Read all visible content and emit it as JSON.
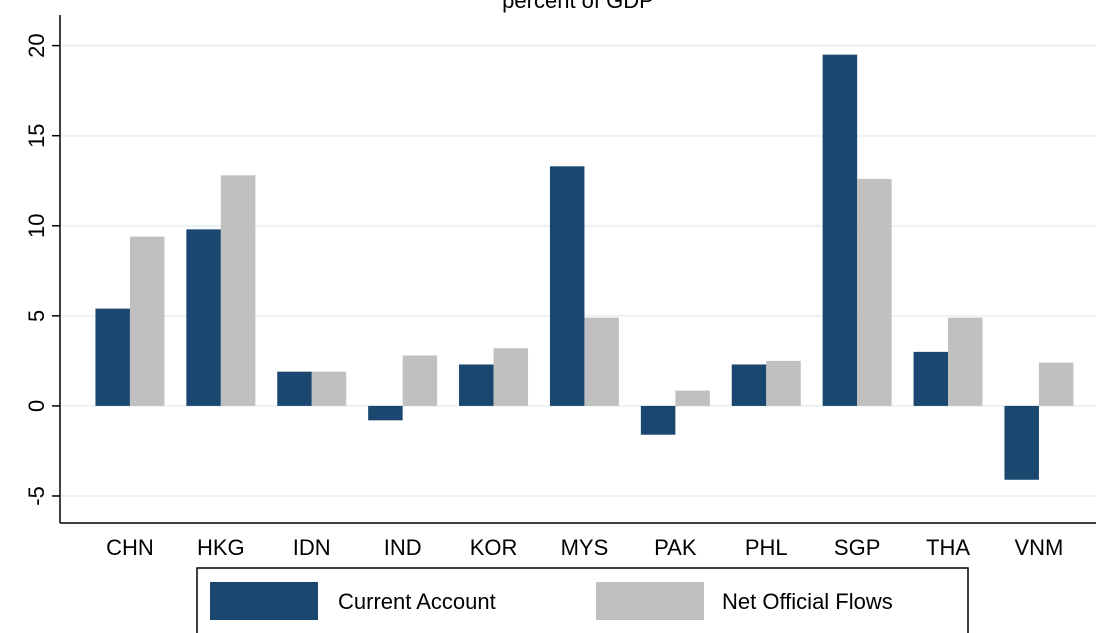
{
  "chart_data": {
    "type": "bar",
    "title": "percent of GDP",
    "categories": [
      "CHN",
      "HKG",
      "IDN",
      "IND",
      "KOR",
      "MYS",
      "PAK",
      "PHL",
      "SGP",
      "THA",
      "VNM"
    ],
    "series": [
      {
        "name": "Current Account",
        "color": "#1a476f",
        "values": [
          5.4,
          9.8,
          1.9,
          -0.8,
          2.3,
          13.3,
          -1.6,
          2.3,
          19.5,
          3.0,
          -4.1
        ]
      },
      {
        "name": "Net Official Flows",
        "color": "#c0c0c0",
        "values": [
          9.4,
          12.8,
          1.9,
          2.8,
          3.2,
          4.9,
          0.85,
          2.5,
          12.6,
          4.9,
          2.4
        ]
      }
    ],
    "ylim": [
      -6.5,
      21.7
    ],
    "yticks": [
      -5,
      0,
      5,
      10,
      15,
      20
    ],
    "grid": true
  }
}
